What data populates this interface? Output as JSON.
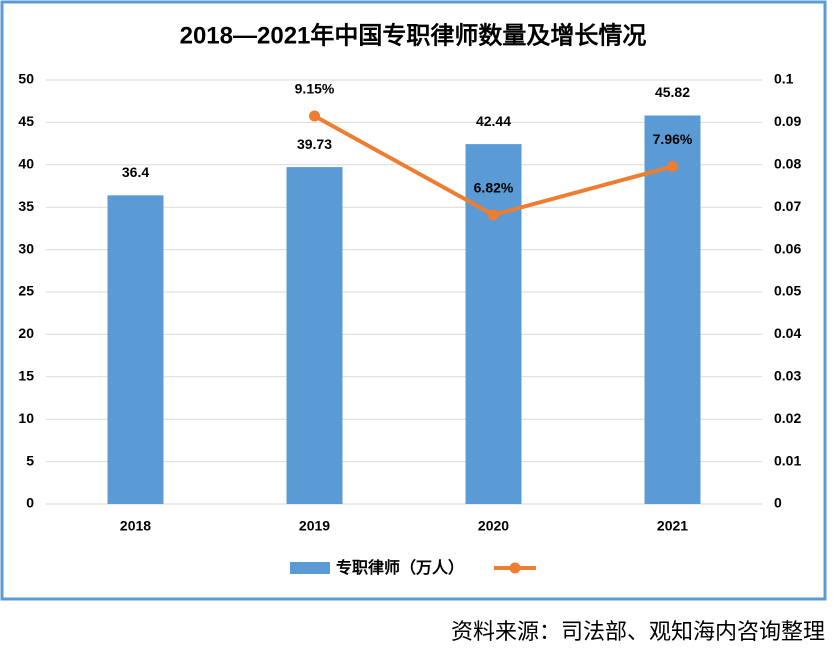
{
  "chart_data": {
    "type": "bar-line",
    "title": "2018—2021年中国专职律师数量及增长情况",
    "categories": [
      "2018",
      "2019",
      "2020",
      "2021"
    ],
    "series": [
      {
        "name": "专职律师（万人）",
        "type": "bar",
        "color": "#5b9bd5",
        "values": [
          36.4,
          39.73,
          42.44,
          45.82
        ]
      },
      {
        "type": "line",
        "axis": "y2",
        "color": "#ed7d31",
        "values": [
          null,
          0.0915,
          0.0682,
          0.0796
        ],
        "value_labels": [
          null,
          "9.15%",
          "6.82%",
          "7.96%"
        ]
      }
    ],
    "ylim": [
      0,
      50
    ],
    "yticks": [
      0,
      5,
      10,
      15,
      20,
      25,
      30,
      35,
      40,
      45,
      50
    ],
    "y2lim": [
      0,
      0.1
    ],
    "y2ticks": [
      0,
      0.01,
      0.02,
      0.03,
      0.04,
      0.05,
      0.06,
      0.07,
      0.08,
      0.09,
      0.1
    ],
    "grid": true,
    "legend": "bottom",
    "source": "资料来源：司法部、观知海内咨询整理"
  }
}
